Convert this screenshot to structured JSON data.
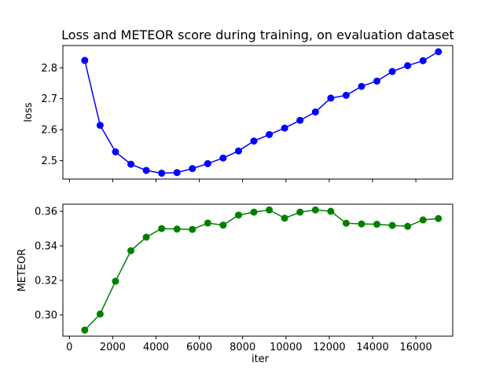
{
  "chart_data": {
    "type": "line",
    "title": "Loss and METEOR score during training, on evaluation dataset",
    "xlabel": "iter",
    "shared_x": true,
    "xlim": [
      -300,
      17700
    ],
    "xticks": [
      0,
      2000,
      4000,
      6000,
      8000,
      10000,
      12000,
      14000,
      16000
    ],
    "grid": false,
    "x": [
      710,
      1420,
      2130,
      2840,
      3550,
      4260,
      4970,
      5680,
      6390,
      7100,
      7810,
      8520,
      9230,
      9940,
      10650,
      11360,
      12070,
      12780,
      13490,
      14200,
      14910,
      15620,
      16330,
      17040
    ],
    "panels": [
      {
        "ylabel": "loss",
        "ylim": [
          2.44,
          2.872
        ],
        "yticks": [
          2.5,
          2.6,
          2.7,
          2.8
        ],
        "color": "#0000ff",
        "values": [
          2.824,
          2.614,
          2.528,
          2.488,
          2.468,
          2.459,
          2.461,
          2.474,
          2.49,
          2.508,
          2.531,
          2.563,
          2.584,
          2.605,
          2.63,
          2.657,
          2.702,
          2.711,
          2.74,
          2.757,
          2.788,
          2.807,
          2.823,
          2.852
        ]
      },
      {
        "ylabel": "METEOR",
        "ylim": [
          0.2877,
          0.3641
        ],
        "yticks": [
          0.3,
          0.32,
          0.34,
          0.36
        ],
        "color": "#008000",
        "values": [
          0.2912,
          0.3005,
          0.3195,
          0.3372,
          0.345,
          0.35,
          0.3497,
          0.3495,
          0.3532,
          0.352,
          0.3578,
          0.3595,
          0.3608,
          0.356,
          0.3595,
          0.3608,
          0.36,
          0.3531,
          0.3527,
          0.3525,
          0.3518,
          0.3513,
          0.355,
          0.3558
        ]
      }
    ]
  }
}
